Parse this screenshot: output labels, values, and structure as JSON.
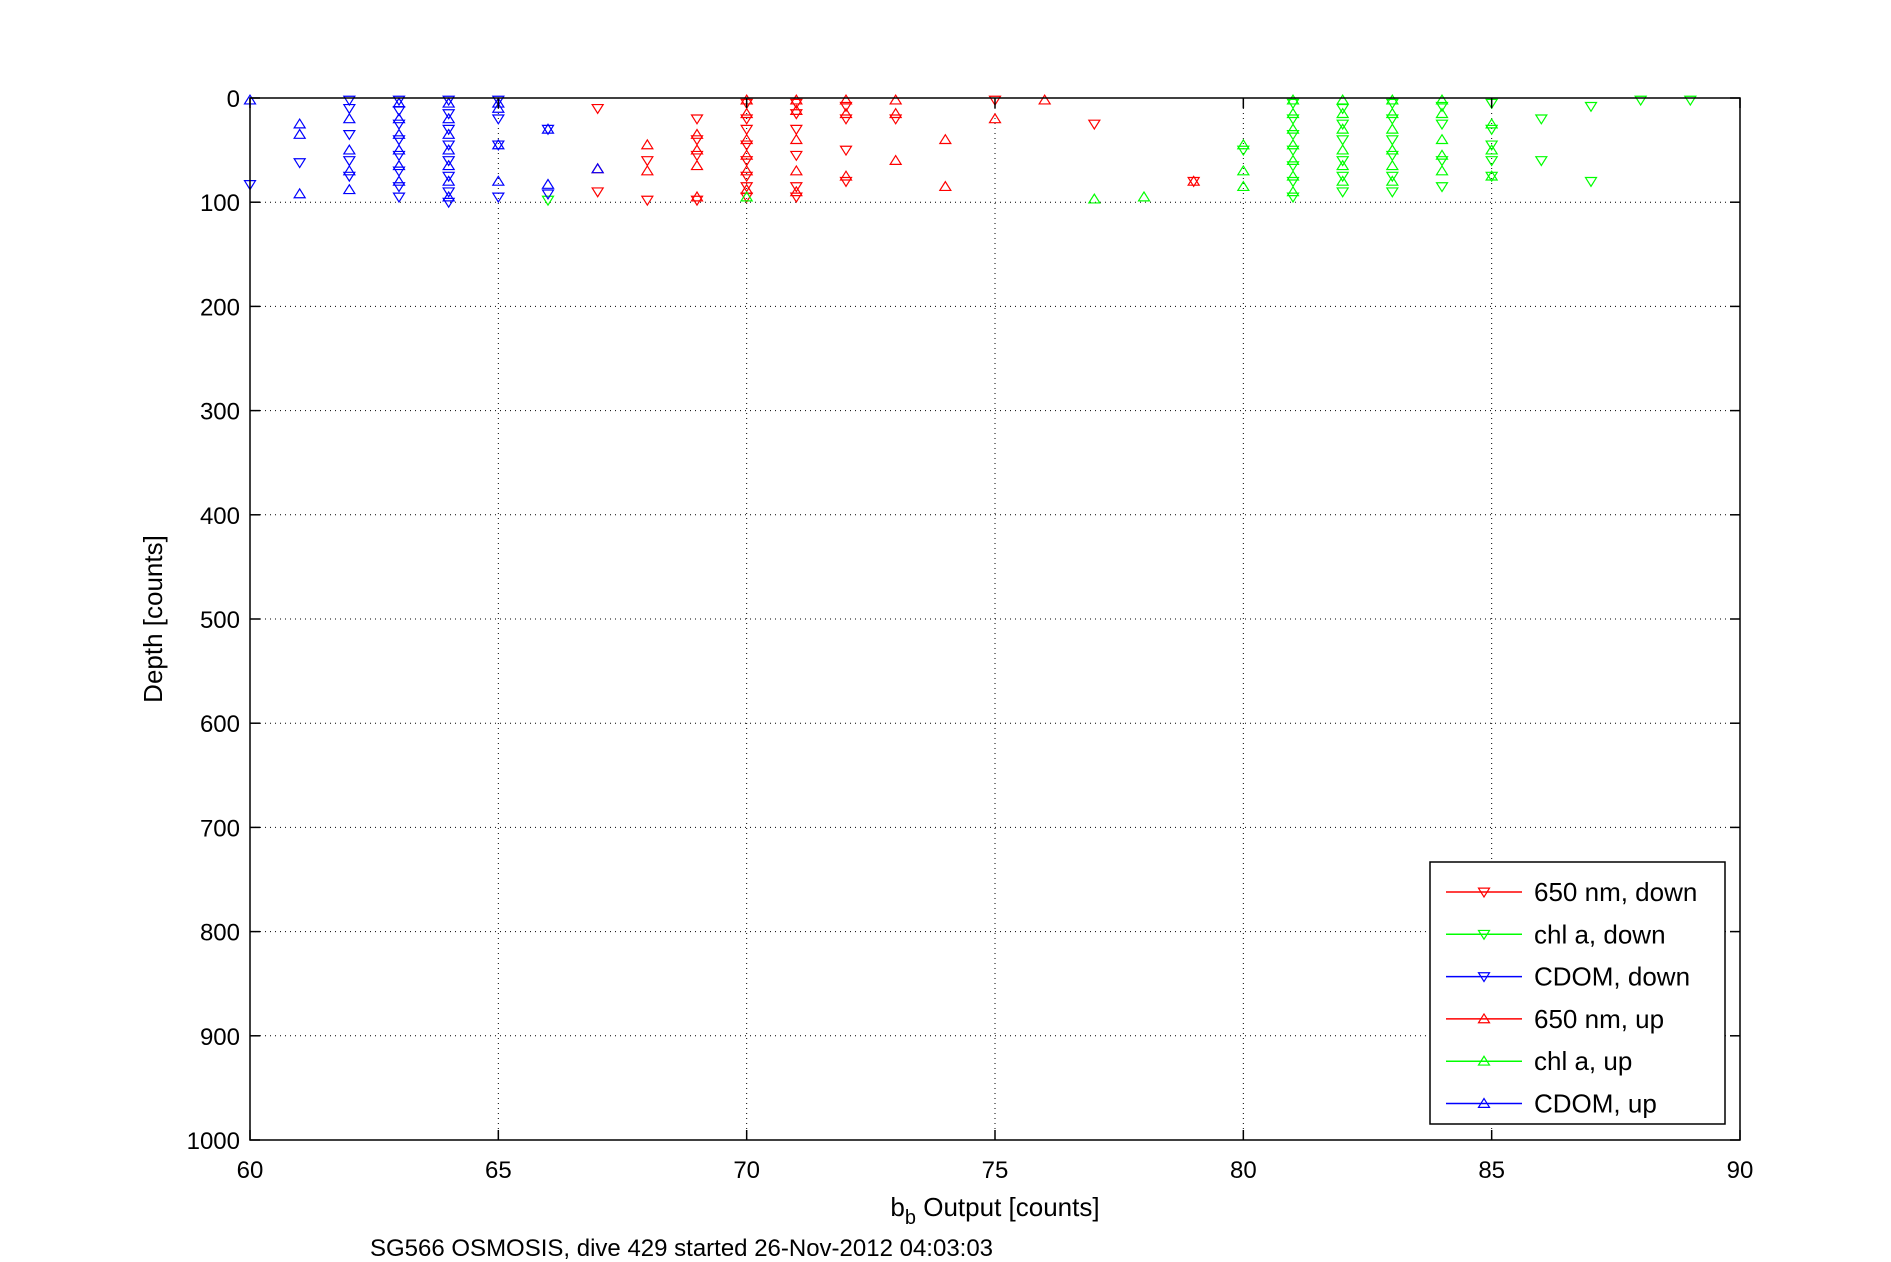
{
  "chart_data": {
    "type": "scatter",
    "xlabel_main": "b",
    "xlabel_sub": "b",
    "xlabel_rest": " Output [counts]",
    "ylabel": "Depth [counts]",
    "caption": "SG566 OSMOSIS, dive 429 started 26-Nov-2012 04:03:03",
    "xlim": [
      60,
      90
    ],
    "ylim": [
      0,
      1000
    ],
    "y_reversed": true,
    "grid": true,
    "legend_position": "bottom-right",
    "x_ticks": [
      60,
      65,
      70,
      75,
      80,
      85,
      90
    ],
    "y_ticks": [
      0,
      100,
      200,
      300,
      400,
      500,
      600,
      700,
      800,
      900,
      1000
    ],
    "x_tick_labels": [
      "60",
      "65",
      "70",
      "75",
      "80",
      "85",
      "90"
    ],
    "y_tick_labels": [
      "0",
      "100",
      "200",
      "300",
      "400",
      "500",
      "600",
      "700",
      "800",
      "900",
      "1000"
    ],
    "series": [
      {
        "name": "650 nm, down",
        "color": "#ff0000",
        "marker": "triangle-down",
        "points": [
          [
            67,
            10
          ],
          [
            67,
            90
          ],
          [
            68,
            60
          ],
          [
            68,
            98
          ],
          [
            69,
            20
          ],
          [
            69,
            40
          ],
          [
            69,
            55
          ],
          [
            69,
            98
          ],
          [
            70,
            5
          ],
          [
            70,
            20
          ],
          [
            70,
            30
          ],
          [
            70,
            45
          ],
          [
            70,
            60
          ],
          [
            70,
            75
          ],
          [
            70,
            85
          ],
          [
            70,
            95
          ],
          [
            71,
            5
          ],
          [
            71,
            15
          ],
          [
            71,
            30
          ],
          [
            71,
            55
          ],
          [
            71,
            85
          ],
          [
            71,
            95
          ],
          [
            72,
            8
          ],
          [
            72,
            20
          ],
          [
            72,
            50
          ],
          [
            72,
            80
          ],
          [
            73,
            20
          ],
          [
            75,
            2
          ],
          [
            77,
            25
          ],
          [
            79,
            80
          ]
        ]
      },
      {
        "name": "chl a, down",
        "color": "#00ff00",
        "marker": "triangle-down",
        "points": [
          [
            66,
            98
          ],
          [
            80,
            50
          ],
          [
            81,
            5
          ],
          [
            81,
            20
          ],
          [
            81,
            35
          ],
          [
            81,
            50
          ],
          [
            81,
            65
          ],
          [
            81,
            80
          ],
          [
            81,
            95
          ],
          [
            82,
            10
          ],
          [
            82,
            25
          ],
          [
            82,
            40
          ],
          [
            82,
            60
          ],
          [
            82,
            75
          ],
          [
            82,
            90
          ],
          [
            83,
            5
          ],
          [
            83,
            20
          ],
          [
            83,
            40
          ],
          [
            83,
            55
          ],
          [
            83,
            75
          ],
          [
            83,
            90
          ],
          [
            84,
            8
          ],
          [
            84,
            25
          ],
          [
            84,
            60
          ],
          [
            84,
            85
          ],
          [
            85,
            5
          ],
          [
            85,
            30
          ],
          [
            85,
            45
          ],
          [
            85,
            60
          ],
          [
            85,
            75
          ],
          [
            86,
            20
          ],
          [
            86,
            60
          ],
          [
            87,
            8
          ],
          [
            87,
            80
          ],
          [
            88,
            2
          ],
          [
            89,
            2
          ]
        ]
      },
      {
        "name": "CDOM, down",
        "color": "#0000ff",
        "marker": "triangle-down",
        "points": [
          [
            60,
            83
          ],
          [
            61,
            62
          ],
          [
            62,
            2
          ],
          [
            62,
            10
          ],
          [
            62,
            35
          ],
          [
            62,
            60
          ],
          [
            62,
            75
          ],
          [
            63,
            2
          ],
          [
            63,
            12
          ],
          [
            63,
            25
          ],
          [
            63,
            40
          ],
          [
            63,
            55
          ],
          [
            63,
            70
          ],
          [
            63,
            85
          ],
          [
            63,
            95
          ],
          [
            64,
            2
          ],
          [
            64,
            15
          ],
          [
            64,
            30
          ],
          [
            64,
            45
          ],
          [
            64,
            60
          ],
          [
            64,
            75
          ],
          [
            64,
            90
          ],
          [
            64,
            100
          ],
          [
            65,
            2
          ],
          [
            65,
            20
          ],
          [
            65,
            45
          ],
          [
            65,
            95
          ],
          [
            66,
            30
          ],
          [
            66,
            92
          ]
        ]
      },
      {
        "name": "650 nm, up",
        "color": "#ff0000",
        "marker": "triangle-up",
        "points": [
          [
            67,
            68
          ],
          [
            68,
            45
          ],
          [
            68,
            70
          ],
          [
            69,
            35
          ],
          [
            69,
            50
          ],
          [
            69,
            65
          ],
          [
            69,
            95
          ],
          [
            70,
            2
          ],
          [
            70,
            15
          ],
          [
            70,
            40
          ],
          [
            70,
            55
          ],
          [
            70,
            70
          ],
          [
            70,
            88
          ],
          [
            71,
            2
          ],
          [
            71,
            12
          ],
          [
            71,
            40
          ],
          [
            71,
            70
          ],
          [
            71,
            90
          ],
          [
            72,
            2
          ],
          [
            72,
            15
          ],
          [
            72,
            75
          ],
          [
            73,
            2
          ],
          [
            73,
            15
          ],
          [
            73,
            60
          ],
          [
            74,
            40
          ],
          [
            74,
            85
          ],
          [
            75,
            20
          ],
          [
            76,
            2
          ],
          [
            79,
            80
          ]
        ]
      },
      {
        "name": "chl a, up",
        "color": "#00ff00",
        "marker": "triangle-up",
        "points": [
          [
            70,
            95
          ],
          [
            77,
            97
          ],
          [
            78,
            95
          ],
          [
            80,
            45
          ],
          [
            80,
            70
          ],
          [
            80,
            85
          ],
          [
            81,
            2
          ],
          [
            81,
            15
          ],
          [
            81,
            30
          ],
          [
            81,
            45
          ],
          [
            81,
            60
          ],
          [
            81,
            75
          ],
          [
            81,
            90
          ],
          [
            82,
            2
          ],
          [
            82,
            15
          ],
          [
            82,
            30
          ],
          [
            82,
            50
          ],
          [
            82,
            65
          ],
          [
            82,
            80
          ],
          [
            83,
            2
          ],
          [
            83,
            15
          ],
          [
            83,
            30
          ],
          [
            83,
            50
          ],
          [
            83,
            65
          ],
          [
            83,
            80
          ],
          [
            84,
            2
          ],
          [
            84,
            15
          ],
          [
            84,
            40
          ],
          [
            84,
            55
          ],
          [
            84,
            70
          ],
          [
            85,
            25
          ],
          [
            85,
            50
          ],
          [
            85,
            75
          ]
        ]
      },
      {
        "name": "CDOM, up",
        "color": "#0000ff",
        "marker": "triangle-up",
        "points": [
          [
            60,
            2
          ],
          [
            61,
            25
          ],
          [
            61,
            35
          ],
          [
            61,
            92
          ],
          [
            62,
            20
          ],
          [
            62,
            50
          ],
          [
            62,
            70
          ],
          [
            62,
            88
          ],
          [
            63,
            5
          ],
          [
            63,
            20
          ],
          [
            63,
            35
          ],
          [
            63,
            50
          ],
          [
            63,
            65
          ],
          [
            63,
            80
          ],
          [
            64,
            5
          ],
          [
            64,
            20
          ],
          [
            64,
            35
          ],
          [
            64,
            50
          ],
          [
            64,
            65
          ],
          [
            64,
            80
          ],
          [
            64,
            95
          ],
          [
            65,
            5
          ],
          [
            65,
            10
          ],
          [
            65,
            45
          ],
          [
            65,
            80
          ],
          [
            66,
            30
          ],
          [
            66,
            83
          ],
          [
            67,
            68
          ]
        ]
      }
    ]
  }
}
